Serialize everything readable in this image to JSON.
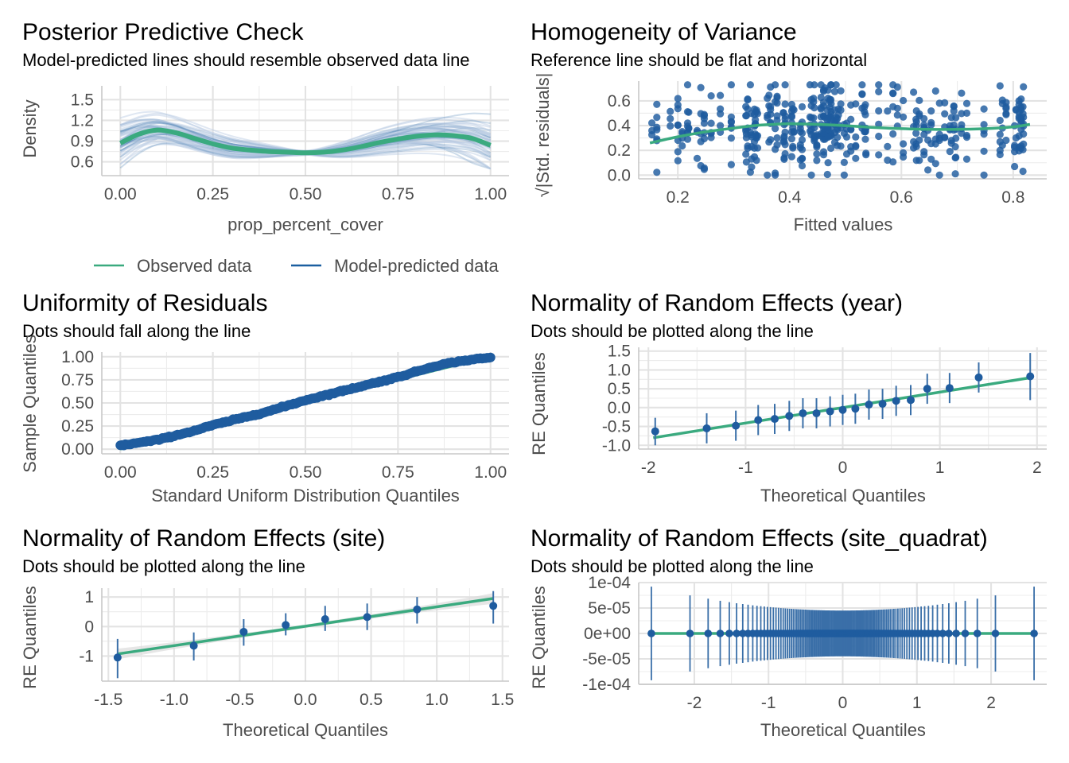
{
  "colors": {
    "observed": "#3aaa7f",
    "predicted": "#1b5fa0",
    "predicted_light": "#b8c9e3",
    "point": "#1f5c9f",
    "errorbar": "#3a6fa8",
    "band": "#dcdcdc"
  },
  "legend": {
    "observed_label": "Observed data",
    "predicted_label": "Model-predicted data"
  },
  "chart_data": [
    {
      "id": "ppc",
      "type": "line",
      "title": "Posterior Predictive Check",
      "subtitle": "Model-predicted lines should resemble observed data line",
      "xlabel": "prop_percent_cover",
      "ylabel": "Density",
      "xlim": [
        -0.05,
        1.05
      ],
      "ylim": [
        0.4,
        1.7
      ],
      "xticks": [
        "0.00",
        "0.25",
        "0.50",
        "0.75",
        "1.00"
      ],
      "yticks": [
        "0.6",
        "0.9",
        "1.2",
        "1.5"
      ],
      "series": [
        {
          "name": "Observed data",
          "x": [
            0.0,
            0.05,
            0.1,
            0.15,
            0.2,
            0.25,
            0.3,
            0.35,
            0.4,
            0.45,
            0.5,
            0.55,
            0.6,
            0.65,
            0.7,
            0.75,
            0.8,
            0.85,
            0.9,
            0.95,
            1.0
          ],
          "y": [
            0.87,
            1.0,
            1.06,
            1.02,
            0.94,
            0.86,
            0.8,
            0.77,
            0.75,
            0.74,
            0.73,
            0.74,
            0.77,
            0.82,
            0.88,
            0.93,
            0.97,
            0.99,
            0.98,
            0.94,
            0.84
          ]
        }
      ]
    },
    {
      "id": "hov",
      "type": "scatter",
      "title": "Homogeneity of Variance",
      "subtitle": "Reference line should be flat and horizontal",
      "xlabel": "Fitted values",
      "ylabel": "√|Std. residuals|",
      "xlim": [
        0.13,
        0.86
      ],
      "ylim": [
        -0.03,
        0.76
      ],
      "xticks": [
        "0.2",
        "0.4",
        "0.6",
        "0.8"
      ],
      "yticks": [
        "0.0",
        "0.2",
        "0.4",
        "0.6"
      ],
      "reference_line": {
        "x": [
          0.15,
          0.2,
          0.25,
          0.3,
          0.35,
          0.4,
          0.45,
          0.5,
          0.55,
          0.6,
          0.65,
          0.7,
          0.75,
          0.8,
          0.83
        ],
        "y": [
          0.26,
          0.31,
          0.35,
          0.38,
          0.405,
          0.415,
          0.41,
          0.4,
          0.385,
          0.375,
          0.37,
          0.37,
          0.375,
          0.39,
          0.41
        ]
      },
      "x_range": [
        0.15,
        0.83
      ],
      "y_range": [
        0.0,
        0.73
      ]
    },
    {
      "id": "unif",
      "type": "scatter",
      "title": "Uniformity of Residuals",
      "subtitle": "Dots should fall along the line",
      "xlabel": "Standard Uniform Distribution Quantiles",
      "ylabel": "Sample Quantiles",
      "xlim": [
        -0.05,
        1.05
      ],
      "ylim": [
        -0.05,
        1.05
      ],
      "xticks": [
        "0.00",
        "0.25",
        "0.50",
        "0.75",
        "1.00"
      ],
      "yticks": [
        "0.00",
        "0.25",
        "0.50",
        "0.75",
        "1.00"
      ],
      "x": [
        0.0,
        0.05,
        0.1,
        0.15,
        0.2,
        0.25,
        0.3,
        0.35,
        0.4,
        0.45,
        0.5,
        0.55,
        0.6,
        0.65,
        0.7,
        0.75,
        0.8,
        0.85,
        0.9,
        0.95,
        1.0
      ],
      "y": [
        0.04,
        0.07,
        0.1,
        0.15,
        0.2,
        0.26,
        0.31,
        0.36,
        0.41,
        0.47,
        0.53,
        0.58,
        0.63,
        0.68,
        0.73,
        0.78,
        0.84,
        0.9,
        0.94,
        0.97,
        0.99
      ]
    },
    {
      "id": "re_year",
      "type": "scatter",
      "title": "Normality of Random Effects (year)",
      "subtitle": "Dots should be plotted along the line",
      "xlabel": "Theoretical Quantiles",
      "ylabel": "RE Quantiles",
      "xlim": [
        -2.1,
        2.1
      ],
      "ylim": [
        -1.1,
        1.6
      ],
      "xticks": [
        "-2",
        "-1",
        "0",
        "1",
        "2"
      ],
      "yticks": [
        "-1.0",
        "-0.5",
        "0.0",
        "0.5",
        "1.0",
        "1.5"
      ],
      "line": {
        "x": [
          -1.95,
          1.95
        ],
        "y": [
          -0.8,
          0.8
        ]
      },
      "points": [
        {
          "x": -1.93,
          "y": -0.63,
          "lo": -1.0,
          "hi": -0.27
        },
        {
          "x": -1.4,
          "y": -0.55,
          "lo": -0.95,
          "hi": -0.15
        },
        {
          "x": -1.1,
          "y": -0.48,
          "lo": -0.88,
          "hi": -0.08
        },
        {
          "x": -0.87,
          "y": -0.33,
          "lo": -0.73,
          "hi": 0.07
        },
        {
          "x": -0.7,
          "y": -0.3,
          "lo": -0.7,
          "hi": 0.1
        },
        {
          "x": -0.55,
          "y": -0.22,
          "lo": -0.62,
          "hi": 0.18
        },
        {
          "x": -0.41,
          "y": -0.15,
          "lo": -0.55,
          "hi": 0.25
        },
        {
          "x": -0.27,
          "y": -0.15,
          "lo": -0.55,
          "hi": 0.25
        },
        {
          "x": -0.13,
          "y": -0.1,
          "lo": -0.5,
          "hi": 0.3
        },
        {
          "x": 0.0,
          "y": -0.06,
          "lo": -0.46,
          "hi": 0.34
        },
        {
          "x": 0.13,
          "y": -0.03,
          "lo": -0.43,
          "hi": 0.37
        },
        {
          "x": 0.27,
          "y": 0.08,
          "lo": -0.32,
          "hi": 0.48
        },
        {
          "x": 0.41,
          "y": 0.1,
          "lo": -0.3,
          "hi": 0.5
        },
        {
          "x": 0.55,
          "y": 0.18,
          "lo": -0.22,
          "hi": 0.58
        },
        {
          "x": 0.7,
          "y": 0.2,
          "lo": -0.2,
          "hi": 0.6
        },
        {
          "x": 0.87,
          "y": 0.5,
          "lo": 0.1,
          "hi": 0.9
        },
        {
          "x": 1.1,
          "y": 0.52,
          "lo": 0.12,
          "hi": 0.92
        },
        {
          "x": 1.4,
          "y": 0.8,
          "lo": 0.4,
          "hi": 1.2
        },
        {
          "x": 1.93,
          "y": 0.83,
          "lo": 0.2,
          "hi": 1.45
        }
      ]
    },
    {
      "id": "re_site",
      "type": "scatter",
      "title": "Normality of Random Effects (site)",
      "subtitle": "Dots should be plotted along the line",
      "xlabel": "Theoretical Quantiles",
      "ylabel": "RE Quantiles",
      "xlim": [
        -1.55,
        1.55
      ],
      "ylim": [
        -1.85,
        1.3
      ],
      "xticks": [
        "-1.5",
        "-1.0",
        "-0.5",
        "0.0",
        "0.5",
        "1.0",
        "1.5"
      ],
      "yticks": [
        "-1",
        "0",
        "1"
      ],
      "line": {
        "x": [
          -1.43,
          1.43
        ],
        "y": [
          -0.93,
          0.95
        ]
      },
      "points": [
        {
          "x": -1.43,
          "y": -1.05,
          "lo": -1.75,
          "hi": -0.42
        },
        {
          "x": -0.85,
          "y": -0.65,
          "lo": -1.15,
          "hi": -0.2
        },
        {
          "x": -0.47,
          "y": -0.18,
          "lo": -0.65,
          "hi": 0.25
        },
        {
          "x": -0.15,
          "y": 0.05,
          "lo": -0.3,
          "hi": 0.45
        },
        {
          "x": 0.15,
          "y": 0.25,
          "lo": -0.15,
          "hi": 0.7
        },
        {
          "x": 0.47,
          "y": 0.32,
          "lo": -0.12,
          "hi": 0.78
        },
        {
          "x": 0.85,
          "y": 0.58,
          "lo": 0.1,
          "hi": 1.0
        },
        {
          "x": 1.43,
          "y": 0.7,
          "lo": 0.1,
          "hi": 1.2
        }
      ]
    },
    {
      "id": "re_quadrat",
      "type": "scatter",
      "title": "Normality of Random Effects (site_quadrat)",
      "subtitle": "Dots should be plotted along the line",
      "xlabel": "Theoretical Quantiles",
      "ylabel": "RE Quantiles",
      "xlim": [
        -2.75,
        2.75
      ],
      "ylim": [
        -0.0001,
        0.0001
      ],
      "xticks": [
        "-2",
        "-1",
        "0",
        "1",
        "2"
      ],
      "yticks": [
        "-1e-04",
        "-5e-05",
        "0e+00",
        "5e-05",
        "1e-04"
      ],
      "line": {
        "x": [
          -2.58,
          2.58
        ],
        "y": [
          0,
          0
        ]
      },
      "point_x_range": [
        -2.58,
        2.58
      ],
      "ci_halfwidth_max": 9.2e-05,
      "ci_halfwidth_min": 4.5e-05
    }
  ]
}
